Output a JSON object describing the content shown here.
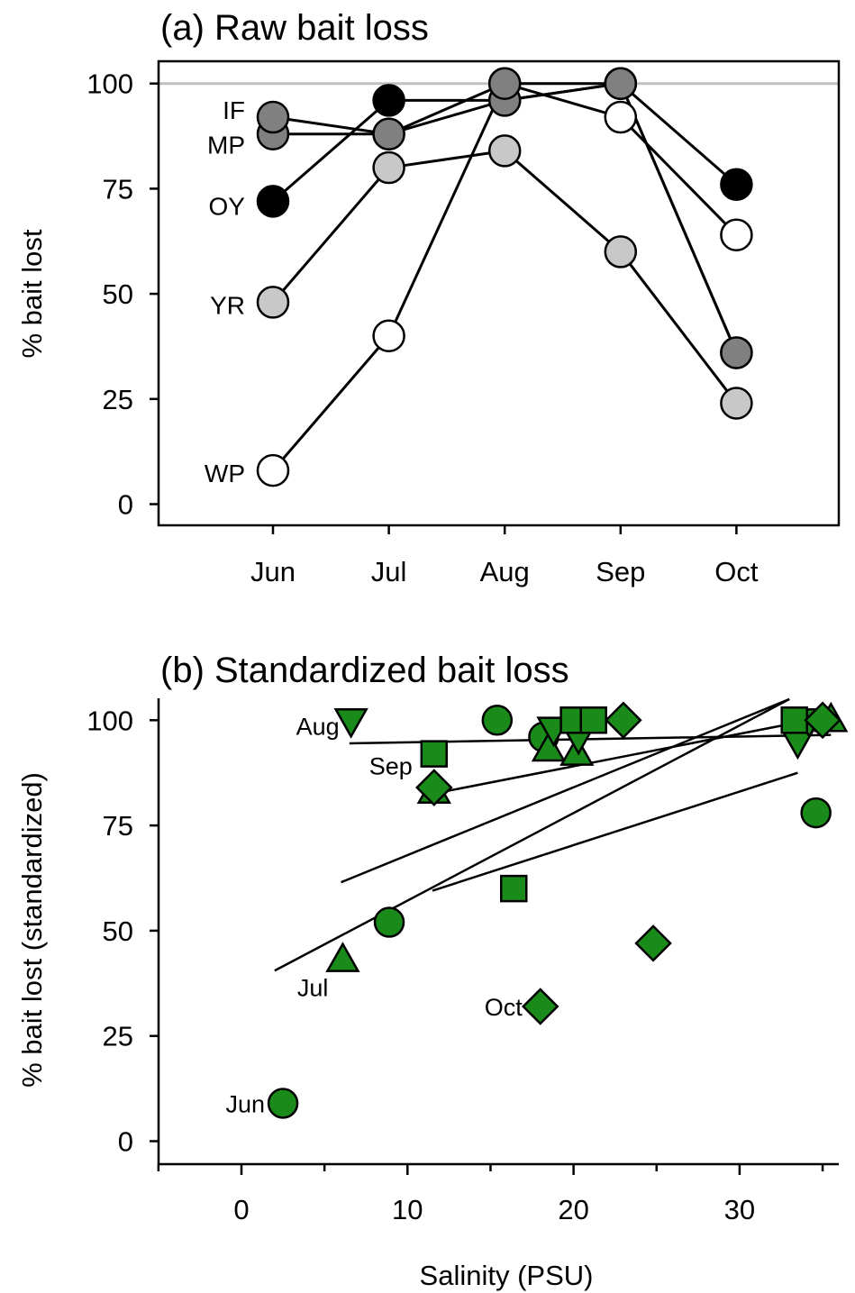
{
  "chart_data": [
    {
      "type": "line",
      "title": "(a) Raw bait loss",
      "xlabel": "",
      "ylabel": "% bait lost",
      "categories": [
        "Jun",
        "Jul",
        "Aug",
        "Sep",
        "Oct"
      ],
      "ylim": [
        -5,
        105
      ],
      "yticks": [
        0,
        25,
        50,
        75,
        100
      ],
      "reference_line": 100,
      "reference_color": "#c0c0c0",
      "series": [
        {
          "name": "IF",
          "values": [
            92,
            88,
            100,
            100,
            36
          ],
          "color": "#808080"
        },
        {
          "name": "MP",
          "values": [
            88,
            88,
            96,
            100,
            36
          ],
          "color": "#808080"
        },
        {
          "name": "OY",
          "values": [
            72,
            96,
            96,
            100,
            76
          ],
          "color": "#000000"
        },
        {
          "name": "YR",
          "values": [
            48,
            80,
            84,
            60,
            24
          ],
          "color": "#c8c8c8"
        },
        {
          "name": "WP",
          "values": [
            8,
            40,
            100,
            92,
            64
          ],
          "color": "#ffffff"
        }
      ]
    },
    {
      "type": "scatter",
      "title": "(b) Standardized bait loss",
      "xlabel": "Salinity (PSU)",
      "ylabel": "% bait lost (standardized)",
      "xlim": [
        -5,
        37
      ],
      "ylim": [
        -5,
        105
      ],
      "xticks": [
        0,
        10,
        20,
        30
      ],
      "yticks": [
        0,
        25,
        50,
        75,
        100
      ],
      "marker_color": "#1a8a1a",
      "series": [
        {
          "name": "Jun",
          "marker": "circle",
          "points": [
            [
              2.5,
              9
            ],
            [
              8.9,
              52
            ],
            [
              15.4,
              100
            ],
            [
              18.2,
              96
            ],
            [
              34.6,
              78
            ]
          ],
          "fit": [
            [
              11.5,
              59.5
            ],
            [
              33.5,
              87.5
            ]
          ]
        },
        {
          "name": "Jul",
          "marker": "triangle-up",
          "points": [
            [
              6.1,
              43
            ],
            [
              11.6,
              83
            ],
            [
              18.5,
              93
            ],
            [
              20.2,
              92
            ],
            [
              35.5,
              100
            ]
          ],
          "fit": [
            [
              2,
              40.5
            ],
            [
              33,
              105
            ]
          ]
        },
        {
          "name": "Aug",
          "marker": "triangle-down",
          "points": [
            [
              6.6,
              100
            ],
            [
              18.8,
              98
            ],
            [
              20.3,
              96
            ],
            [
              33.5,
              95
            ],
            [
              34.2,
              100
            ]
          ],
          "fit": [
            [
              6.5,
              94.5
            ],
            [
              35.5,
              96.5
            ]
          ]
        },
        {
          "name": "Sep",
          "marker": "square",
          "points": [
            [
              11.6,
              92
            ],
            [
              16.4,
              60
            ],
            [
              20.0,
              100
            ],
            [
              21.2,
              100
            ],
            [
              33.3,
              100
            ]
          ],
          "fit": [
            [
              6,
              61.5
            ],
            [
              33,
              105
            ]
          ]
        },
        {
          "name": "Oct",
          "marker": "diamond",
          "points": [
            [
              11.6,
              84
            ],
            [
              18.0,
              32
            ],
            [
              23.0,
              100
            ],
            [
              24.8,
              47
            ],
            [
              35.0,
              100
            ]
          ],
          "fit": [
            [
              11.5,
              82.5
            ],
            [
              35.5,
              101
            ]
          ]
        }
      ]
    }
  ]
}
